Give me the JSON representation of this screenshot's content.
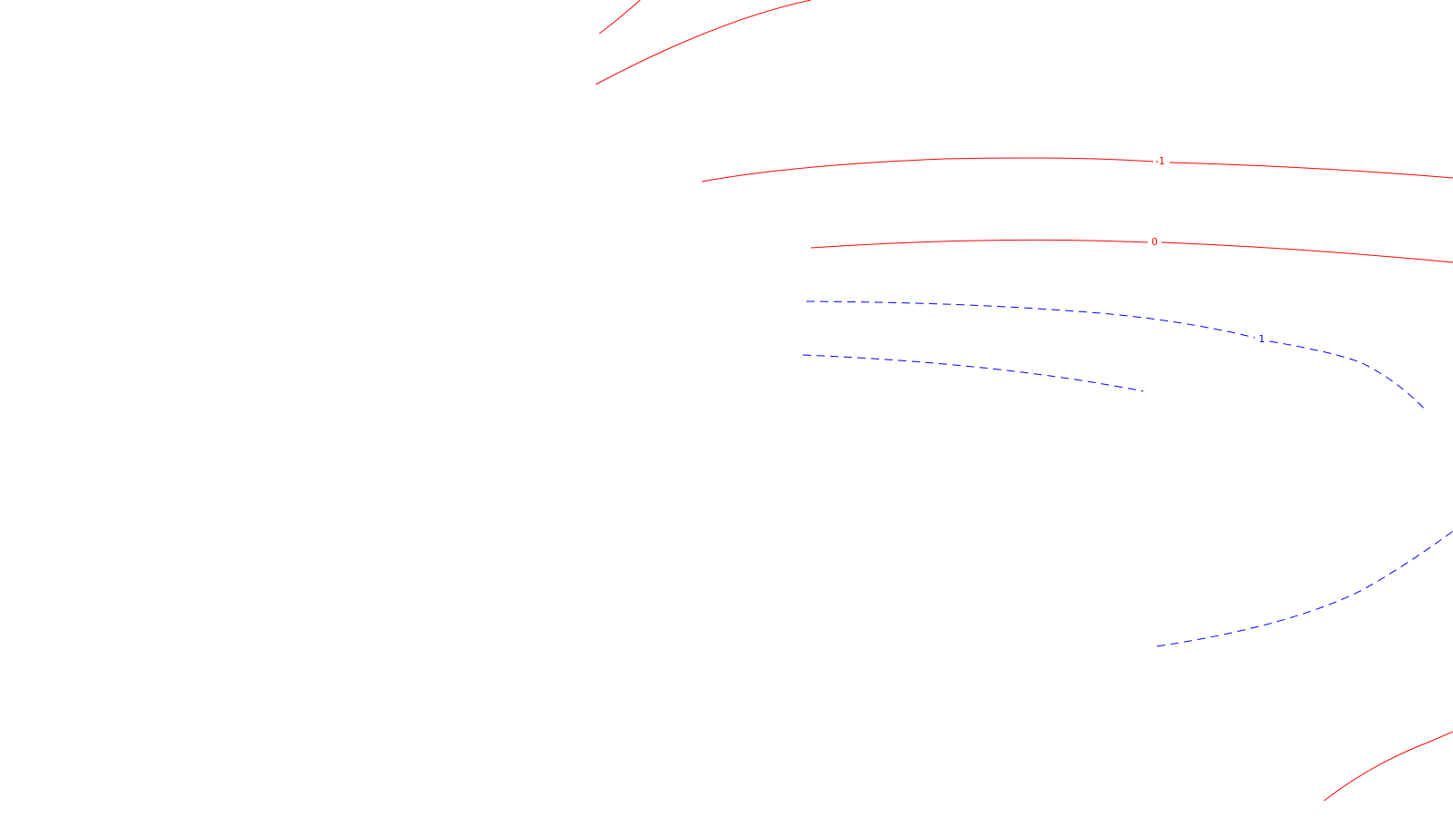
{
  "map": {
    "colors": {
      "background": "#ffffff",
      "negative_contour": "#ff0000",
      "positive_contour": "#0000ff"
    },
    "contours": [
      {
        "id": "neg-top-left-short",
        "level": "-1",
        "label": "",
        "style": "solid",
        "color": "#ff0000"
      },
      {
        "id": "neg-top-left-long",
        "level": "-1",
        "label": "",
        "style": "solid",
        "color": "#ff0000"
      },
      {
        "id": "neg-1",
        "level": "-1",
        "label": "-1",
        "style": "solid",
        "color": "#ff0000"
      },
      {
        "id": "zero",
        "level": "0",
        "label": "0",
        "style": "solid",
        "color": "#ff0000"
      },
      {
        "id": "pos-1-upper",
        "level": "1",
        "label": "1",
        "style": "dashed",
        "color": "#0000ff"
      },
      {
        "id": "pos-1-lower",
        "level": "1",
        "label": "",
        "style": "dashed",
        "color": "#0000ff"
      },
      {
        "id": "pos-1-bottom",
        "level": "1",
        "label": "",
        "style": "dashed",
        "color": "#0000ff"
      },
      {
        "id": "neg-bottom-right",
        "level": "-1",
        "label": "",
        "style": "solid",
        "color": "#ff0000"
      }
    ]
  }
}
